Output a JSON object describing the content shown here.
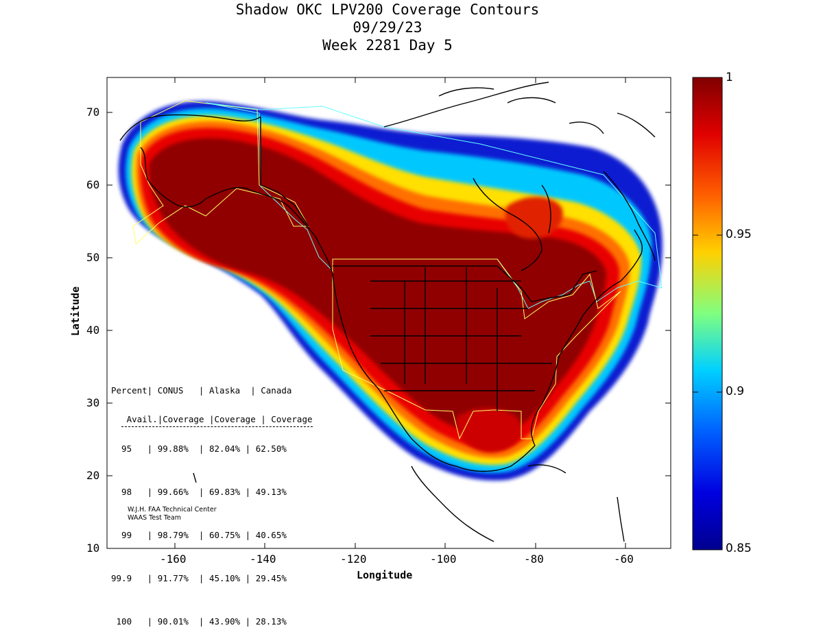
{
  "title": {
    "line1": "Shadow OKC LPV200 Coverage Contours",
    "line2": "09/29/23",
    "line3": "Week 2281 Day 5"
  },
  "axes": {
    "xlabel": "Longitude",
    "ylabel": "Latitude",
    "x_ticks": [
      "-160",
      "-140",
      "-120",
      "-100",
      "-80",
      "-60"
    ],
    "y_ticks": [
      "70",
      "60",
      "50",
      "40",
      "30",
      "20",
      "10"
    ],
    "xlim": [
      -175,
      -50
    ],
    "ylim": [
      10,
      75
    ]
  },
  "colorbar": {
    "ticks": [
      "1",
      "0.95",
      "0.9",
      "0.85"
    ],
    "range": [
      0.85,
      1.0
    ],
    "colormap": "jet"
  },
  "stats_table": {
    "header1": "Percent| CONUS   | Alaska  | Canada",
    "header2": " Avail.|Coverage |Coverage | Coverage",
    "rows": [
      "  95   | 99.88%  | 82.04% | 62.50%",
      "  98   | 99.66%  | 69.83% | 49.13%",
      "  99   | 98.79%  | 60.75% | 40.65%",
      "99.9   | 91.77%  | 45.10% | 29.45%",
      " 100   | 90.01%  | 43.90% | 28.13%"
    ]
  },
  "credit": {
    "line1": "W.J.H. FAA Technical Center",
    "line2": "WAAS Test Team"
  },
  "colors": {
    "max": "#800000",
    "high": "#ff0000",
    "mid_high": "#ff8000",
    "mid": "#ffff00",
    "mid_low": "#00ffff",
    "low": "#0060ff",
    "min": "#00008f",
    "region_border_conus": "#ffff66",
    "region_border_canada": "#66ffff"
  }
}
